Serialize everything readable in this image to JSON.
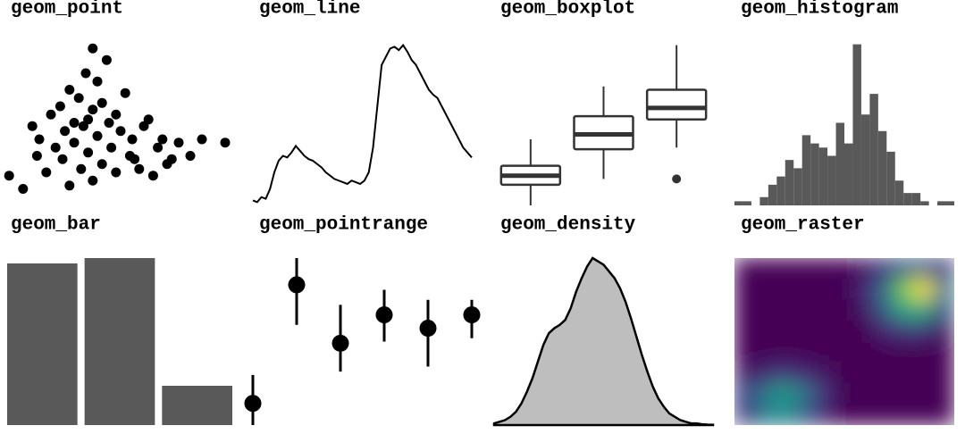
{
  "chart_data": [
    {
      "type": "scatter",
      "title": "geom_point",
      "xlim": [
        0,
        100
      ],
      "ylim": [
        0,
        100
      ],
      "color": "#000000",
      "x": [
        2,
        8,
        12,
        14,
        15,
        18,
        20,
        22,
        24,
        25,
        26,
        28,
        28,
        30,
        30,
        32,
        33,
        34,
        35,
        36,
        36,
        38,
        38,
        40,
        40,
        42,
        42,
        44,
        45,
        46,
        48,
        48,
        50,
        52,
        54,
        55,
        56,
        58,
        60,
        62,
        64,
        66,
        68,
        70,
        72,
        75,
        80,
        85,
        95,
        38
      ],
      "y": [
        18,
        10,
        48,
        30,
        40,
        20,
        55,
        35,
        60,
        28,
        45,
        70,
        12,
        50,
        38,
        65,
        22,
        48,
        80,
        52,
        32,
        58,
        15,
        75,
        42,
        62,
        25,
        88,
        50,
        35,
        55,
        20,
        45,
        68,
        30,
        40,
        28,
        22,
        48,
        52,
        18,
        35,
        40,
        25,
        28,
        38,
        30,
        40,
        38,
        95
      ]
    },
    {
      "type": "line",
      "title": "geom_line",
      "ylim": [
        0,
        100
      ],
      "color": "#000000",
      "values": [
        3,
        2,
        5,
        4,
        10,
        20,
        27,
        30,
        29,
        32,
        36,
        33,
        30,
        28,
        27,
        25,
        23,
        20,
        18,
        16,
        15,
        14,
        13,
        15,
        14,
        13,
        15,
        20,
        35,
        60,
        85,
        90,
        95,
        96,
        94,
        97,
        93,
        88,
        85,
        80,
        75,
        70,
        67,
        65,
        60,
        55,
        50,
        45,
        40,
        35,
        32,
        29
      ]
    },
    {
      "type": "boxplot",
      "title": "geom_boxplot",
      "ylim": [
        0,
        100
      ],
      "color": "#333333",
      "categories": [
        null,
        null,
        null
      ],
      "boxes": [
        {
          "low": 0,
          "q1": 12.5,
          "median": 18,
          "q3": 24,
          "high": 40,
          "outliers": []
        },
        {
          "low": 16,
          "q1": 34,
          "median": 43,
          "q3": 54,
          "high": 72,
          "outliers": []
        },
        {
          "low": 35,
          "q1": 52,
          "median": 59,
          "q3": 70,
          "high": 97,
          "outliers": [
            16
          ]
        }
      ]
    },
    {
      "type": "histogram",
      "title": "geom_histogram",
      "ylim": [
        0,
        40
      ],
      "color": "#595959",
      "bins": [
        0,
        1,
        2,
        3,
        4,
        5,
        6,
        7,
        8,
        9,
        10,
        11,
        12,
        13,
        14,
        15,
        16,
        17,
        18,
        19,
        20,
        21,
        22,
        23,
        24,
        25,
        26
      ],
      "counts": [
        1,
        1,
        0,
        2,
        5,
        7,
        11,
        9,
        17,
        15,
        14,
        12,
        20,
        15,
        39,
        22,
        27,
        18,
        13,
        6,
        3,
        3,
        1,
        0,
        1,
        1
      ]
    },
    {
      "type": "bar",
      "title": "geom_bar",
      "ylim": [
        0,
        187
      ],
      "color": "#595959",
      "categories": [
        null,
        null,
        null
      ],
      "values": [
        181,
        187,
        44
      ]
    },
    {
      "type": "pointrange",
      "title": "geom_pointrange",
      "ylim": [
        0,
        100
      ],
      "color": "#000000",
      "categories": [
        null,
        null,
        null,
        null,
        null,
        null
      ],
      "values": [
        13,
        84,
        49,
        66,
        58,
        66
      ],
      "low": [
        0,
        60,
        32,
        50,
        35,
        52
      ],
      "high": [
        30,
        100,
        72,
        81,
        75,
        75
      ]
    },
    {
      "type": "density",
      "title": "geom_density",
      "ylim": [
        0,
        100
      ],
      "color": "#bebebe",
      "values": [
        1,
        2,
        3,
        5,
        8,
        13,
        20,
        28,
        38,
        48,
        55,
        58,
        60,
        63,
        70,
        80,
        88,
        95,
        100,
        98,
        96,
        92,
        88,
        82,
        74,
        64,
        53,
        42,
        32,
        23,
        16,
        11,
        7,
        5,
        3,
        2,
        1,
        1,
        0.5,
        0.3,
        0.2
      ]
    },
    {
      "type": "raster",
      "title": "geom_raster",
      "colormap": "viridis",
      "z": [
        [
          0,
          0,
          0,
          0,
          0,
          0,
          0.05,
          0.15,
          0.3,
          0.3,
          0.15
        ],
        [
          0,
          0,
          0,
          0,
          0,
          0,
          0.1,
          0.35,
          0.8,
          1.0,
          0.4
        ],
        [
          0,
          0,
          0,
          0,
          0,
          0,
          0.05,
          0.3,
          0.6,
          0.6,
          0.25
        ],
        [
          0,
          0,
          0,
          0,
          0,
          0,
          0,
          0.1,
          0.15,
          0.15,
          0.05
        ],
        [
          0,
          0,
          0,
          0,
          0,
          0,
          0,
          0,
          0,
          0,
          0
        ],
        [
          0.05,
          0.1,
          0.15,
          0.1,
          0.05,
          0,
          0,
          0,
          0,
          0,
          0
        ],
        [
          0.2,
          0.4,
          0.55,
          0.4,
          0.15,
          0,
          0,
          0,
          0,
          0,
          0
        ],
        [
          0.15,
          0.4,
          0.5,
          0.3,
          0.1,
          0,
          0,
          0,
          0,
          0,
          0
        ]
      ]
    }
  ]
}
